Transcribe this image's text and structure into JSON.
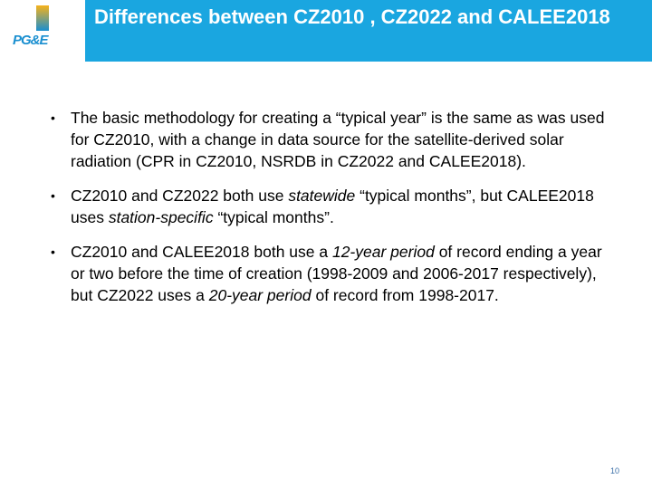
{
  "header": {
    "logo": "PG&E",
    "title": "Differences between CZ2010 , CZ2022 and CALEE2018"
  },
  "bullets": [
    [
      "The basic methodology for creating a “typical year” is the same as was used for CZ2010, with a change in data source for the satellite-derived solar radiation (CPR in CZ2010, NSRDB in CZ2022 and CALEE2018)."
    ],
    [
      "CZ2010 and CZ2022 both use ",
      "statewide",
      " “typical months”, but CALEE2018 uses ",
      "station-specific",
      " “typical months”."
    ],
    [
      "CZ2010 and CALEE2018 both use a ",
      "12-year period",
      " of record ending a year or two before the time of creation (1998-2009 and 2006-2017 respectively), but CZ2022 uses a ",
      "20-year period",
      " of record from 1998-2017."
    ]
  ],
  "page_number": "10"
}
